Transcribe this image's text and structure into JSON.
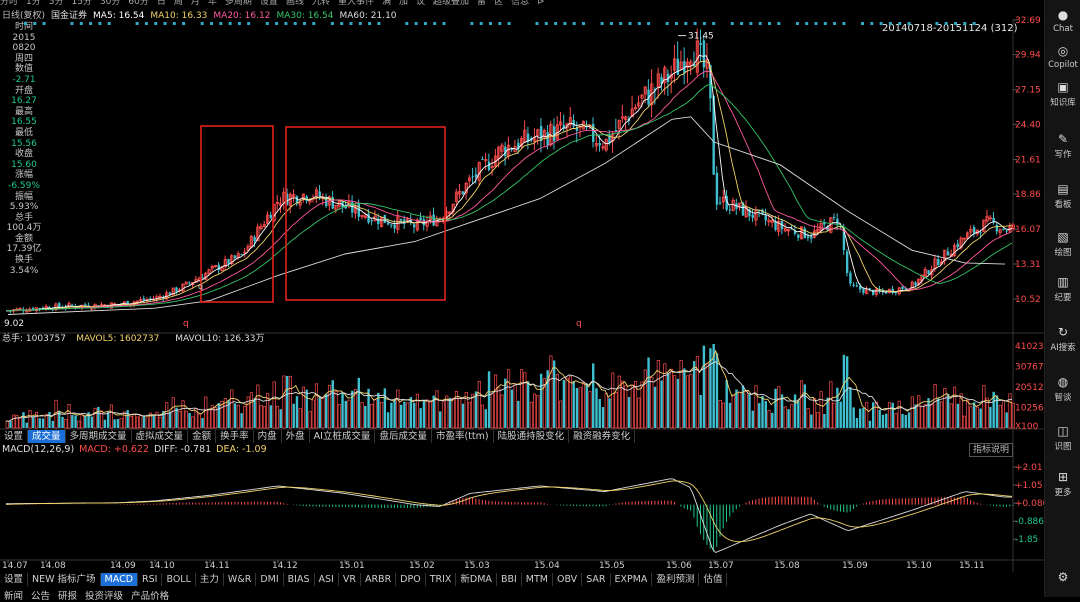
{
  "top_menu": [
    "分时",
    "1分",
    "5分",
    "15分",
    "30分",
    "60分",
    "日",
    "周",
    "月",
    "年",
    "多周期",
    "设置",
    "画线",
    "九转",
    "重大事件",
    "满",
    "加",
    "议",
    "超级叠加",
    "雷",
    "区",
    "信息",
    "⊳"
  ],
  "ma_legend": [
    {
      "text": "日线(复权)",
      "color": "#bbbbbb"
    },
    {
      "text": "国金证券",
      "color": "#dddddd"
    },
    {
      "text": "MA5: 16.54",
      "color": "#ffffff"
    },
    {
      "text": "MA10: 16.33",
      "color": "#f0d36a"
    },
    {
      "text": "MA20: 16.12",
      "color": "#ff5aa0"
    },
    {
      "text": "MA30: 16.54",
      "color": "#36c46a"
    },
    {
      "text": "MA60: 21.10",
      "color": "#dddddd"
    }
  ],
  "range_label": "20140718-20151124 (312)",
  "info_panel": [
    {
      "text": "时间",
      "cls": "lbl"
    },
    {
      "text": "2015",
      "cls": "lbl"
    },
    {
      "text": "0820",
      "cls": "lbl"
    },
    {
      "text": "周四",
      "cls": "lbl"
    },
    {
      "text": "数值",
      "cls": "lbl"
    },
    {
      "text": "-2.71",
      "cls": "dn"
    },
    {
      "text": "开盘",
      "cls": "lbl"
    },
    {
      "text": "16.27",
      "cls": "dn"
    },
    {
      "text": "最高",
      "cls": "lbl"
    },
    {
      "text": "16.55",
      "cls": "dn"
    },
    {
      "text": "最低",
      "cls": "lbl"
    },
    {
      "text": "15.56",
      "cls": "dn"
    },
    {
      "text": "收盘",
      "cls": "lbl"
    },
    {
      "text": "15.60",
      "cls": "dn"
    },
    {
      "text": "涨幅",
      "cls": "lbl"
    },
    {
      "text": "-6.59%",
      "cls": "dn"
    },
    {
      "text": "振幅",
      "cls": "lbl"
    },
    {
      "text": "5.93%",
      "cls": "lbl"
    },
    {
      "text": "总手",
      "cls": "lbl"
    },
    {
      "text": "100.4万",
      "cls": "lbl"
    },
    {
      "text": "金额",
      "cls": "lbl"
    },
    {
      "text": "17.39亿",
      "cls": "lbl"
    },
    {
      "text": "换手",
      "cls": "lbl"
    },
    {
      "text": "3.54%",
      "cls": "lbl"
    }
  ],
  "price_axis": [
    "32.69",
    "29.94",
    "27.15",
    "24.40",
    "21.61",
    "18.86",
    "16.07",
    "13.31",
    "10.52"
  ],
  "annotations": {
    "high": "31.45",
    "low": "9.02",
    "q_marks": [
      "q",
      "q",
      "q"
    ]
  },
  "volume_legend": [
    {
      "text": "总手: 1003757",
      "color": "#dddddd"
    },
    {
      "text": "MAVOL5: 1602737",
      "color": "#f0d36a"
    },
    {
      "text": "MAVOL10: 126.33万",
      "color": "#dddddd"
    }
  ],
  "volume_axis": [
    "41023",
    "30767",
    "20512",
    "10256",
    "X100"
  ],
  "volume_tabs": [
    "设置",
    "成交量",
    "多周期成交量",
    "虚拟成交量",
    "金额",
    "换手率",
    "内盘",
    "外盘",
    "AI立桩成交量",
    "盘后成交量",
    "市盈率(ttm)",
    "陆股通持股变化",
    "融资融券变化"
  ],
  "volume_active_tab": "成交量",
  "macd_head": [
    {
      "text": "MACD(12,26,9)",
      "color": "#dddddd"
    },
    {
      "text": "MACD: +0.622",
      "color": "#ff4d4d"
    },
    {
      "text": "DIFF: -0.781",
      "color": "#dddddd"
    },
    {
      "text": "DEA: -1.09",
      "color": "#f0d36a"
    }
  ],
  "explain_button": "指标说明",
  "macd_axis": [
    "+2.01",
    "+1.05",
    "+0.080",
    "-0.886",
    "-1.85"
  ],
  "x_axis_labels": [
    "14.07",
    "14.08",
    "14.09",
    "14.10",
    "14.11",
    "14.12",
    "15.01",
    "15.02",
    "15.03",
    "15.04",
    "15.05",
    "15.06",
    "15.07",
    "15.08",
    "15.09",
    "15.10",
    "15.11"
  ],
  "indicator_tabs": [
    "设置",
    "NEW 指标广场",
    "MACD",
    "RSI",
    "BOLL",
    "主力",
    "W&R",
    "DMI",
    "BIAS",
    "ASI",
    "VR",
    "ARBR",
    "DPO",
    "TRIX",
    "新DMA",
    "BBI",
    "MTM",
    "OBV",
    "SAR",
    "EXPMA",
    "盈利预测",
    "估值"
  ],
  "indicator_active_tab": "MACD",
  "news_tabs": [
    "新闻",
    "公告",
    "研报",
    "投资评级",
    "产品价格"
  ],
  "sidebar": [
    {
      "label": "Chat",
      "icon": "chat-icon",
      "glyph": "●"
    },
    {
      "label": "Copilot",
      "icon": "copilot-icon",
      "glyph": "◎"
    },
    {
      "label": "知识库",
      "icon": "knowledge-icon",
      "glyph": "▣"
    },
    {
      "label": "写作",
      "icon": "write-icon",
      "glyph": "✎"
    },
    {
      "label": "看板",
      "icon": "board-icon",
      "glyph": "▤"
    },
    {
      "label": "绘图",
      "icon": "draw-icon",
      "glyph": "▧"
    },
    {
      "label": "纪要",
      "icon": "notes-icon",
      "glyph": "▥"
    },
    {
      "label": "AI搜索",
      "icon": "ai-search-icon",
      "glyph": "↻"
    },
    {
      "label": "智谈",
      "icon": "talk-icon",
      "glyph": "◍"
    },
    {
      "label": "识图",
      "icon": "recognize-icon",
      "glyph": "◫"
    },
    {
      "label": "更多",
      "icon": "more-icon",
      "glyph": "⊞"
    },
    {
      "label": "",
      "icon": "settings-icon",
      "glyph": "⚙"
    }
  ],
  "colors": {
    "up": "#ff4d4d",
    "down": "#1fc98a",
    "volume_down": "#3fc0d0",
    "highlight_box": "#e0201e",
    "active_tab": "#1b6fd6"
  },
  "chart_data": {
    "type": "candlestick",
    "title": "国金证券 日线(复权)",
    "x_range": [
      "2014-07-18",
      "2015-11-24"
    ],
    "y_range": [
      9.02,
      32.69
    ],
    "price_axis_ticks": [
      32.69,
      29.94,
      27.15,
      24.4,
      21.61,
      18.86,
      16.07,
      13.31,
      10.52
    ],
    "close_path": [
      {
        "x": "14.07",
        "y": 9.6
      },
      {
        "x": "14.08",
        "y": 9.9
      },
      {
        "x": "14.09",
        "y": 10.1
      },
      {
        "x": "14.10",
        "y": 10.6
      },
      {
        "x": "14.10b",
        "y": 11.4
      },
      {
        "x": "14.11",
        "y": 12.8
      },
      {
        "x": "14.11b",
        "y": 14.0
      },
      {
        "x": "14.12",
        "y": 18.5
      },
      {
        "x": "14.12b",
        "y": 18.9
      },
      {
        "x": "15.01",
        "y": 17.8
      },
      {
        "x": "15.01b",
        "y": 16.9
      },
      {
        "x": "15.02",
        "y": 16.3
      },
      {
        "x": "15.02b",
        "y": 17.1
      },
      {
        "x": "15.03",
        "y": 20.0
      },
      {
        "x": "15.03b",
        "y": 22.5
      },
      {
        "x": "15.04",
        "y": 23.5
      },
      {
        "x": "15.04b",
        "y": 24.1
      },
      {
        "x": "15.05",
        "y": 23.0
      },
      {
        "x": "15.05b",
        "y": 26.0
      },
      {
        "x": "15.06",
        "y": 28.5
      },
      {
        "x": "15.06b",
        "y": 30.8
      },
      {
        "x": "15.06c",
        "y": 28.0
      },
      {
        "x": "15.07",
        "y": 18.5
      },
      {
        "x": "15.07b",
        "y": 17.5
      },
      {
        "x": "15.08",
        "y": 16.2
      },
      {
        "x": "15.08b",
        "y": 15.6
      },
      {
        "x": "15.08c",
        "y": 17.0
      },
      {
        "x": "15.09",
        "y": 11.5
      },
      {
        "x": "15.09b",
        "y": 11.0
      },
      {
        "x": "15.10",
        "y": 11.6
      },
      {
        "x": "15.10b",
        "y": 13.5
      },
      {
        "x": "15.11",
        "y": 15.5
      },
      {
        "x": "15.11b",
        "y": 16.6
      },
      {
        "x": "15.11c",
        "y": 16.1
      }
    ],
    "ma60_path": [
      {
        "x": "14.07",
        "y": 9.3
      },
      {
        "x": "14.10",
        "y": 9.8
      },
      {
        "x": "14.11",
        "y": 10.4
      },
      {
        "x": "14.12",
        "y": 12.4
      },
      {
        "x": "15.01",
        "y": 14.1
      },
      {
        "x": "15.02",
        "y": 15.1
      },
      {
        "x": "15.03",
        "y": 16.6
      },
      {
        "x": "15.04",
        "y": 18.5
      },
      {
        "x": "15.05",
        "y": 21.3
      },
      {
        "x": "15.06",
        "y": 24.8
      },
      {
        "x": "15.06b",
        "y": 25.0
      },
      {
        "x": "15.07",
        "y": 23.0
      },
      {
        "x": "15.08",
        "y": 21.2
      },
      {
        "x": "15.09",
        "y": 17.5
      },
      {
        "x": "15.10",
        "y": 14.4
      },
      {
        "x": "15.11",
        "y": 13.4
      },
      {
        "x": "15.11c",
        "y": 13.3
      }
    ],
    "high_marker": 31.45,
    "low_marker": 9.02,
    "highlight_boxes": [
      "14.11",
      "14.12-15.02"
    ],
    "volume_axis_ticks": [
      41023,
      30767,
      20512,
      10256
    ],
    "macd_axis_ticks": [
      2.01,
      1.05,
      0.08,
      -0.886,
      -1.85
    ],
    "macd_path": [
      {
        "x": "14.07",
        "y": 0.05
      },
      {
        "x": "14.09",
        "y": 0.1
      },
      {
        "x": "14.10",
        "y": 0.2
      },
      {
        "x": "14.11",
        "y": 0.5
      },
      {
        "x": "14.12",
        "y": 1.0
      },
      {
        "x": "15.01",
        "y": 0.6
      },
      {
        "x": "15.02",
        "y": 0.0
      },
      {
        "x": "15.02b",
        "y": -0.1
      },
      {
        "x": "15.03",
        "y": 0.6
      },
      {
        "x": "15.04",
        "y": 1.0
      },
      {
        "x": "15.05",
        "y": 0.7
      },
      {
        "x": "15.06",
        "y": 1.4
      },
      {
        "x": "15.06b",
        "y": 0.9
      },
      {
        "x": "15.07",
        "y": -2.6
      },
      {
        "x": "15.08",
        "y": -1.1
      },
      {
        "x": "15.08b",
        "y": -0.5
      },
      {
        "x": "15.09",
        "y": -1.4
      },
      {
        "x": "15.10",
        "y": -0.3
      },
      {
        "x": "15.11",
        "y": 0.7
      },
      {
        "x": "15.11c",
        "y": 0.4
      }
    ]
  }
}
